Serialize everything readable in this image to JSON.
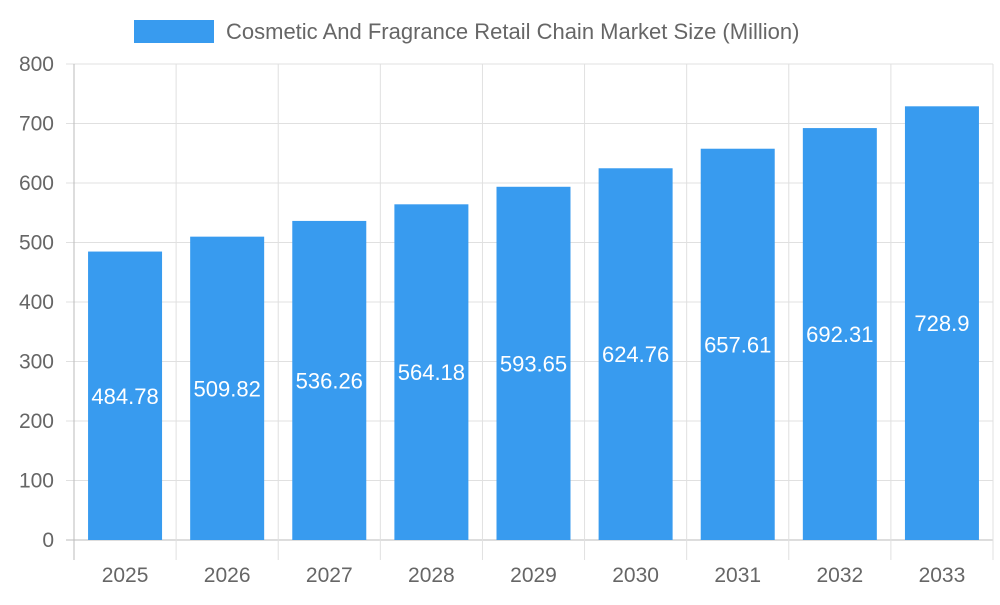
{
  "chart_data": {
    "type": "bar",
    "title": "",
    "xlabel": "",
    "ylabel": "",
    "categories": [
      "2025",
      "2026",
      "2027",
      "2028",
      "2029",
      "2030",
      "2031",
      "2032",
      "2033"
    ],
    "series": [
      {
        "name": "Cosmetic And Fragrance Retail Chain Market Size (Million)",
        "values": [
          484.78,
          509.82,
          536.26,
          564.18,
          593.65,
          624.76,
          657.61,
          692.31,
          728.9
        ],
        "color": "#389bef"
      }
    ],
    "data_labels": [
      "484.78",
      "509.82",
      "536.26",
      "564.18",
      "593.65",
      "624.76",
      "657.61",
      "692.31",
      "728.9"
    ],
    "ylim": [
      0,
      800
    ],
    "yticks": [
      "0",
      "100",
      "200",
      "300",
      "400",
      "500",
      "600",
      "700",
      "800"
    ],
    "grid": true,
    "legend_position": "top"
  }
}
